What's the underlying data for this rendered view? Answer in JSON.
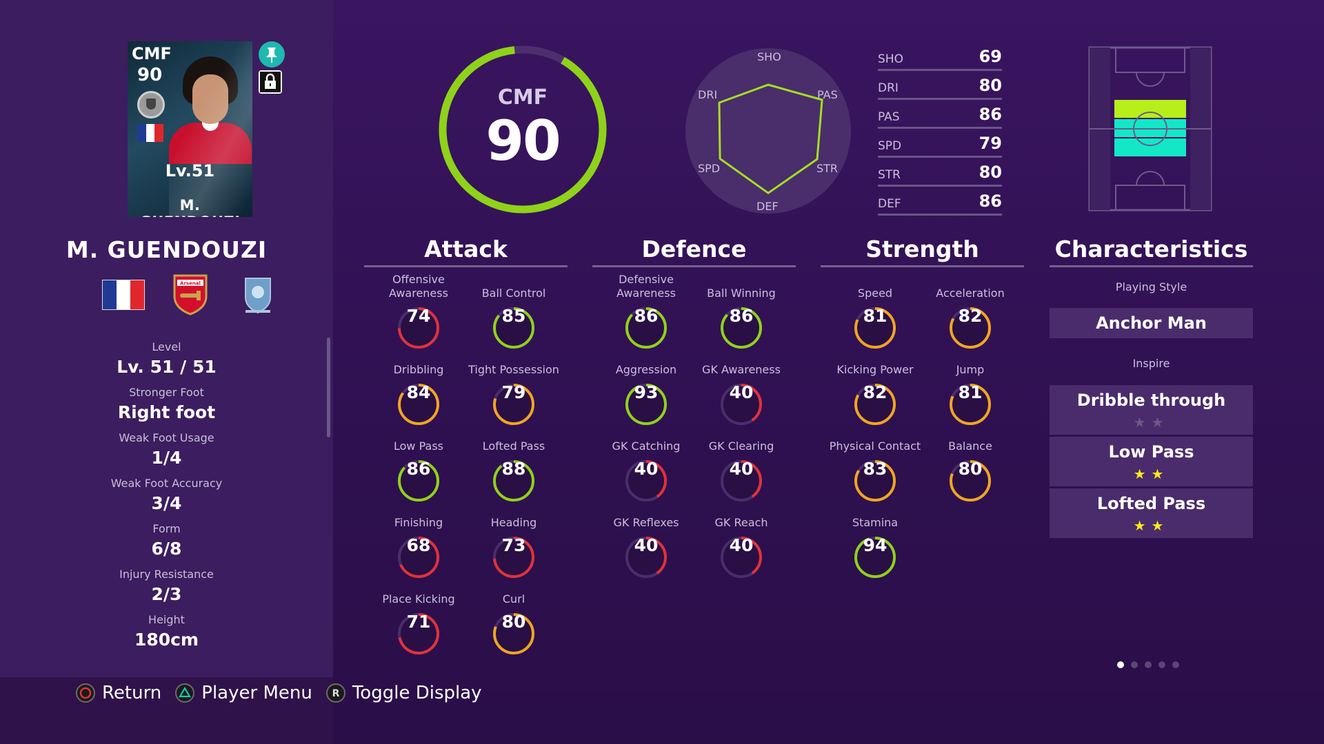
{
  "player": {
    "card_position": "CMF",
    "card_rating": "90",
    "card_level": "Lv.51",
    "card_name": "M. GUENDOUZI",
    "name": "M. GUENDOUZI",
    "nation_flag_colors": [
      "#1f3a93",
      "#ffffff",
      "#e1262d"
    ],
    "club_crest": "arsenal-crest-icon",
    "league_crest": "english-league-crest-icon"
  },
  "info": [
    {
      "label": "Level",
      "value": "Lv. 51 / 51"
    },
    {
      "label": "Stronger Foot",
      "value": "Right foot"
    },
    {
      "label": "Weak Foot Usage",
      "value": "1/4"
    },
    {
      "label": "Weak Foot Accuracy",
      "value": "3/4"
    },
    {
      "label": "Form",
      "value": "6/8"
    },
    {
      "label": "Injury Resistance",
      "value": "2/3"
    },
    {
      "label": "Height",
      "value": "180cm"
    }
  ],
  "overall": {
    "position": "CMF",
    "rating": "90",
    "gauge_fraction": 0.9
  },
  "radar": {
    "labels": [
      "SHO",
      "PAS",
      "STR",
      "DEF",
      "SPD",
      "DRI"
    ],
    "values": [
      69,
      86,
      80,
      86,
      79,
      80
    ]
  },
  "summary": [
    {
      "label": "SHO",
      "value": "69"
    },
    {
      "label": "DRI",
      "value": "80"
    },
    {
      "label": "PAS",
      "value": "86"
    },
    {
      "label": "SPD",
      "value": "79"
    },
    {
      "label": "STR",
      "value": "80"
    },
    {
      "label": "DEF",
      "value": "86"
    }
  ],
  "sections": {
    "attack": {
      "title": "Attack",
      "stats": [
        {
          "label": "Offensive Awareness",
          "value": 74
        },
        {
          "label": "Ball Control",
          "value": 85
        },
        {
          "label": "Dribbling",
          "value": 84
        },
        {
          "label": "Tight Possession",
          "value": 79
        },
        {
          "label": "Low Pass",
          "value": 86
        },
        {
          "label": "Lofted Pass",
          "value": 88
        },
        {
          "label": "Finishing",
          "value": 68
        },
        {
          "label": "Heading",
          "value": 73
        },
        {
          "label": "Place Kicking",
          "value": 71
        },
        {
          "label": "Curl",
          "value": 80
        }
      ]
    },
    "defence": {
      "title": "Defence",
      "stats": [
        {
          "label": "Defensive Awareness",
          "value": 86
        },
        {
          "label": "Ball Winning",
          "value": 86
        },
        {
          "label": "Aggression",
          "value": 93
        },
        {
          "label": "GK Awareness",
          "value": 40
        },
        {
          "label": "GK Catching",
          "value": 40
        },
        {
          "label": "GK Clearing",
          "value": 40
        },
        {
          "label": "GK Reflexes",
          "value": 40
        },
        {
          "label": "GK Reach",
          "value": 40
        }
      ]
    },
    "strength": {
      "title": "Strength",
      "stats": [
        {
          "label": "Speed",
          "value": 81
        },
        {
          "label": "Acceleration",
          "value": 82
        },
        {
          "label": "Kicking Power",
          "value": 82
        },
        {
          "label": "Jump",
          "value": 81
        },
        {
          "label": "Physical Contact",
          "value": 83
        },
        {
          "label": "Balance",
          "value": 80
        },
        {
          "label": "Stamina",
          "value": 94
        }
      ]
    },
    "characteristics": {
      "title": "Characteristics",
      "playing_style_label": "Playing Style",
      "playing_style": "Anchor Man",
      "inspire_label": "Inspire",
      "skills": [
        {
          "name": "Dribble through",
          "stars": "★★",
          "stars_filled": 0
        },
        {
          "name": "Low Pass",
          "stars": "★★",
          "stars_filled": 2
        },
        {
          "name": "Lofted Pass",
          "stars": "★★",
          "stars_filled": 2
        }
      ]
    }
  },
  "controls": [
    {
      "label": "Return",
      "icon": "circle-button-icon"
    },
    {
      "label": "Player Menu",
      "icon": "triangle-button-icon"
    },
    {
      "label": "Toggle Display",
      "icon": "r-button-icon"
    }
  ],
  "colors": {
    "background": "#2b0f48",
    "panel": "#3c1d5f",
    "green": "#8fd21a",
    "yellow_green": "#c6d21a",
    "orange": "#f0a521",
    "red": "#e0323a",
    "pitch_highlight": "#12e8c8",
    "pitch_highlight_top": "#b6ef1a"
  },
  "pagination": {
    "pages": 5,
    "current": 0
  }
}
